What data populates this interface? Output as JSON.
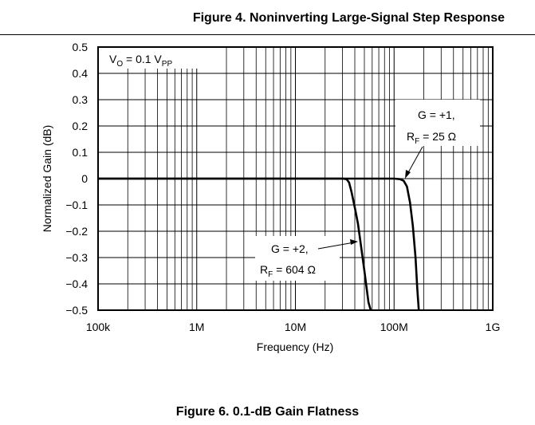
{
  "captions": {
    "top": "Figure 4. Noninverting Large-Signal Step Response",
    "bottom": "Figure 6. 0.1-dB Gain Flatness"
  },
  "chart_data": {
    "type": "line",
    "xlabel": "Frequency (Hz)",
    "ylabel": "Normalized Gain (dB)",
    "xscale": "log",
    "xlim": [
      100000,
      1000000000
    ],
    "ylim": [
      -0.5,
      0.5
    ],
    "grid": true,
    "x_ticks": [
      {
        "value": 100000,
        "label": "100k"
      },
      {
        "value": 1000000,
        "label": "1M"
      },
      {
        "value": 10000000,
        "label": "10M"
      },
      {
        "value": 100000000,
        "label": "100M"
      },
      {
        "value": 1000000000,
        "label": "1G"
      }
    ],
    "y_ticks": [
      {
        "value": 0.5,
        "label": "0.5"
      },
      {
        "value": 0.4,
        "label": "0.4"
      },
      {
        "value": 0.3,
        "label": "0.3"
      },
      {
        "value": 0.2,
        "label": "0.2"
      },
      {
        "value": 0.1,
        "label": "0.1"
      },
      {
        "value": 0,
        "label": "0"
      },
      {
        "value": -0.1,
        "label": "−0.1"
      },
      {
        "value": -0.2,
        "label": "−0.2"
      },
      {
        "value": -0.3,
        "label": "−0.3"
      },
      {
        "value": -0.4,
        "label": "−0.4"
      },
      {
        "value": -0.5,
        "label": "−0.5"
      }
    ],
    "condition": {
      "main": "V",
      "sub1": "O",
      "mid": " = 0.1 V",
      "sub2": "PP"
    },
    "series": [
      {
        "x": [
          100000,
          1000000,
          10000000,
          20000000,
          30000000,
          33000000,
          35000000,
          37000000,
          40000000,
          43000000,
          46000000,
          50000000,
          55000000,
          58000000
        ],
        "y": [
          0,
          0,
          0,
          0,
          0,
          -0.002,
          -0.015,
          -0.05,
          -0.11,
          -0.17,
          -0.25,
          -0.35,
          -0.47,
          -0.5
        ],
        "annotation": {
          "line1": "G = +2,",
          "r": "R",
          "rsub": "F",
          "rval": " = 604 Ω"
        }
      },
      {
        "x": [
          100000,
          1000000,
          10000000,
          100000000,
          115000000,
          125000000,
          135000000,
          145000000,
          155000000,
          165000000,
          172000000,
          178000000
        ],
        "y": [
          0,
          0,
          0,
          0,
          -0.002,
          -0.008,
          -0.03,
          -0.09,
          -0.18,
          -0.3,
          -0.42,
          -0.5
        ],
        "annotation": {
          "line1": "G = +1,",
          "r": "R",
          "rsub": "F",
          "rval": " = 25 Ω"
        }
      }
    ]
  }
}
